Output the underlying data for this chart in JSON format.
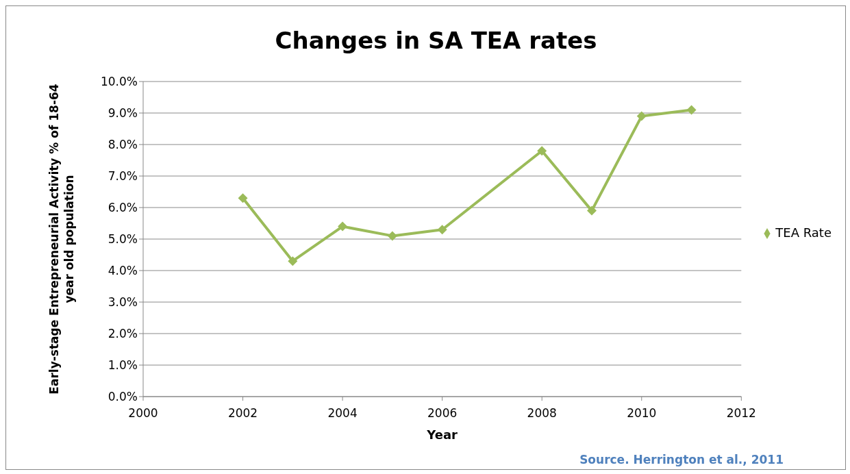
{
  "chart_data": {
    "type": "line",
    "title": "Changes in SA TEA rates",
    "xlabel": "Year",
    "ylabel": "Early-stage Entrepreneurial Activity % of 18-64 year old population",
    "x": [
      2002,
      2003,
      2004,
      2005,
      2006,
      2008,
      2009,
      2010,
      2011
    ],
    "series": [
      {
        "name": "TEA Rate",
        "color": "#9bbb59",
        "values": [
          6.3,
          4.3,
          5.4,
          5.1,
          5.3,
          7.8,
          5.9,
          8.9,
          9.1
        ]
      }
    ],
    "xlim": [
      2000,
      2012
    ],
    "xticks": [
      2000,
      2002,
      2004,
      2006,
      2008,
      2010,
      2012
    ],
    "ylim": [
      0,
      10
    ],
    "yticks": [
      {
        "value": 0,
        "label": "0.0%"
      },
      {
        "value": 1,
        "label": "1.0%"
      },
      {
        "value": 2,
        "label": "2.0%"
      },
      {
        "value": 3,
        "label": "3.0%"
      },
      {
        "value": 4,
        "label": "4.0%"
      },
      {
        "value": 5,
        "label": "5.0%"
      },
      {
        "value": 6,
        "label": "6.0%"
      },
      {
        "value": 7,
        "label": "7.0%"
      },
      {
        "value": 8,
        "label": "8.0%"
      },
      {
        "value": 9,
        "label": "9.0%"
      },
      {
        "value": 10,
        "label": "10.0%"
      }
    ],
    "grid": "y",
    "legend": "right",
    "marker": "diamond",
    "line_style": "solid",
    "annotations": [
      "Source. Herrington et al., 2011"
    ]
  }
}
